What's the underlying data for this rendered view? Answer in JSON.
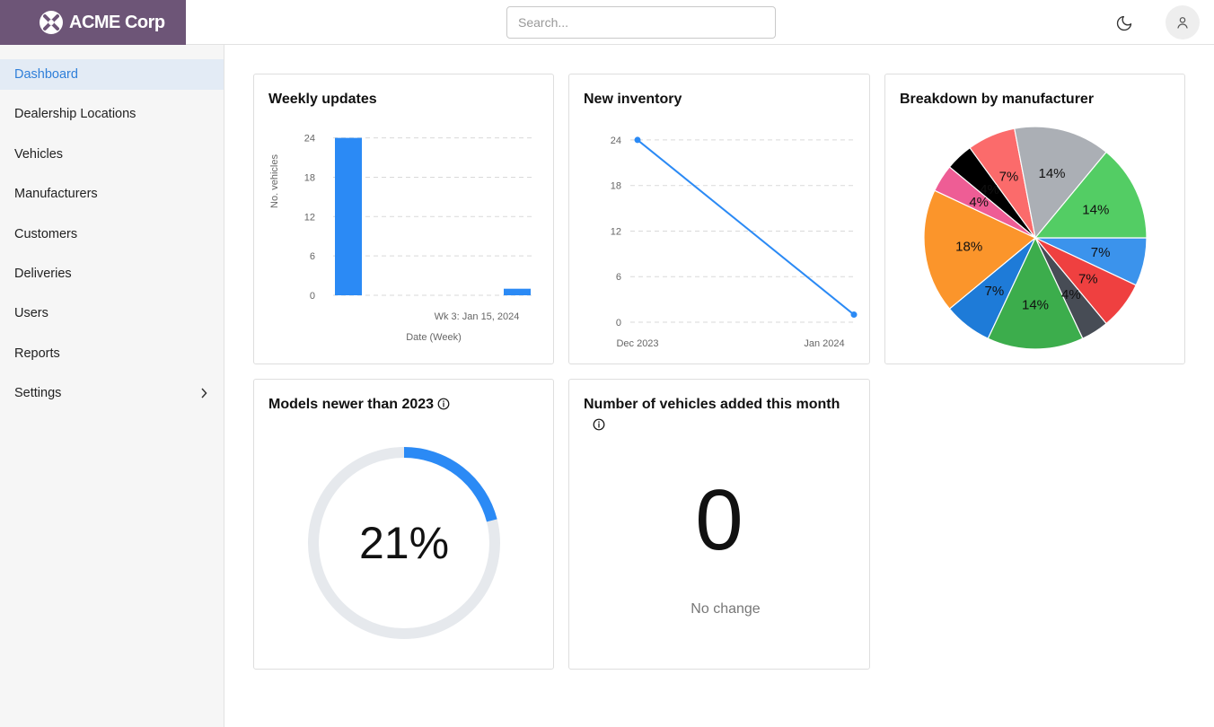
{
  "brand": {
    "name": "ACME Corp"
  },
  "search": {
    "placeholder": "Search..."
  },
  "icons": {
    "theme": "moon-icon",
    "user": "user-icon",
    "info": "info-icon",
    "chevron": "chevron-right-icon"
  },
  "colors": {
    "brand": "#6d5577",
    "accent": "#2f7fd9",
    "chart_blue": "#2b8af5",
    "gauge_track": "#e6e9ed"
  },
  "sidebar": {
    "items": [
      {
        "label": "Dashboard",
        "active": true
      },
      {
        "label": "Dealership Locations"
      },
      {
        "label": "Vehicles"
      },
      {
        "label": "Manufacturers"
      },
      {
        "label": "Customers"
      },
      {
        "label": "Deliveries"
      },
      {
        "label": "Users"
      },
      {
        "label": "Reports"
      },
      {
        "label": "Settings",
        "has_children": true
      }
    ]
  },
  "cards": {
    "weekly": {
      "title": "Weekly updates"
    },
    "inventory": {
      "title": "New inventory"
    },
    "breakdown": {
      "title": "Breakdown by manufacturer"
    },
    "models": {
      "title": "Models newer than 2023"
    },
    "added": {
      "title": "Number of vehicles added this month",
      "value": "0",
      "change": "No change"
    }
  },
  "chart_data": [
    {
      "type": "bar",
      "title": "Weekly updates",
      "xlabel": "Date (Week)",
      "ylabel": "No. vehicles",
      "yticks": [
        "0",
        "6",
        "12",
        "18",
        "24"
      ],
      "ylim": [
        0,
        26
      ],
      "visible_xtick": "Wk 3: Jan 15, 2024",
      "grid": true,
      "values": [
        24,
        1
      ]
    },
    {
      "type": "line",
      "title": "New inventory",
      "x": [
        "Dec 2023",
        "Jan 2024"
      ],
      "values": [
        24,
        1
      ],
      "yticks": [
        "0",
        "6",
        "12",
        "18",
        "24"
      ],
      "ylim": [
        0,
        26
      ],
      "grid": true
    },
    {
      "type": "pie",
      "title": "Breakdown by manufacturer",
      "slices": [
        {
          "label": "7%",
          "value": 7,
          "color": "#3b93ec"
        },
        {
          "label": "7%",
          "value": 7,
          "color": "#ef4040"
        },
        {
          "label": "4%",
          "value": 4,
          "color": "#474c55"
        },
        {
          "label": "14%",
          "value": 14,
          "color": "#3cad4c"
        },
        {
          "label": "7%",
          "value": 7,
          "color": "#1e7bd8"
        },
        {
          "label": "18%",
          "value": 18,
          "color": "#fb952b"
        },
        {
          "label": "4%",
          "value": 4,
          "color": "#ee5d95"
        },
        {
          "label": "4%",
          "value": 4,
          "color": "#000000"
        },
        {
          "label": "7%",
          "value": 7,
          "color": "#fb6b6b"
        },
        {
          "label": "14%",
          "value": 14,
          "color": "#abafb5"
        },
        {
          "label": "14%",
          "value": 14,
          "color": "#53cd64"
        }
      ]
    },
    {
      "type": "gauge",
      "title": "Models newer than 2023",
      "value": 21,
      "label": "21%"
    }
  ]
}
